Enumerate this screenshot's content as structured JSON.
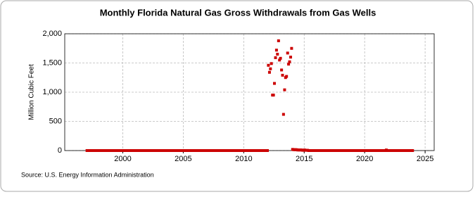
{
  "chart_data": {
    "type": "scatter",
    "title": "Monthly Florida Natural Gas Gross Withdrawals from Gas Wells",
    "y_label": "Million Cubic Feet",
    "source": "Source: U.S. Energy Information Administration",
    "color": "#cc0000",
    "grid": true,
    "xlim": [
      1995.2,
      2025.75
    ],
    "xticks": [
      2000,
      2005,
      2010,
      2015,
      2020,
      2025
    ],
    "ylim": [
      0,
      2000
    ],
    "yticks": [
      0,
      500,
      {
        "value": 1000,
        "label": "1,000"
      },
      {
        "value": 1500,
        "label": "1,500"
      },
      {
        "value": 2000,
        "label": "2,000"
      }
    ],
    "x": [
      1997.04,
      1997.13,
      1997.21,
      1997.29,
      1997.38,
      1997.46,
      1997.54,
      1997.63,
      1997.71,
      1997.79,
      1997.88,
      1997.96,
      1998.04,
      1998.13,
      1998.21,
      1998.29,
      1998.38,
      1998.46,
      1998.54,
      1998.63,
      1998.71,
      1998.79,
      1998.88,
      1998.96,
      1999.04,
      1999.13,
      1999.21,
      1999.29,
      1999.38,
      1999.46,
      1999.54,
      1999.63,
      1999.71,
      1999.79,
      1999.88,
      1999.96,
      2000.04,
      2000.13,
      2000.21,
      2000.29,
      2000.38,
      2000.46,
      2000.54,
      2000.63,
      2000.71,
      2000.79,
      2000.88,
      2000.96,
      2001.04,
      2001.13,
      2001.21,
      2001.29,
      2001.38,
      2001.46,
      2001.54,
      2001.63,
      2001.71,
      2001.79,
      2001.88,
      2001.96,
      2002.04,
      2002.13,
      2002.21,
      2002.29,
      2002.38,
      2002.46,
      2002.54,
      2002.63,
      2002.71,
      2002.79,
      2002.88,
      2002.96,
      2003.04,
      2003.13,
      2003.21,
      2003.29,
      2003.38,
      2003.46,
      2003.54,
      2003.63,
      2003.71,
      2003.79,
      2003.88,
      2003.96,
      2004.04,
      2004.13,
      2004.21,
      2004.29,
      2004.38,
      2004.46,
      2004.54,
      2004.63,
      2004.71,
      2004.79,
      2004.88,
      2004.96,
      2005.04,
      2005.13,
      2005.21,
      2005.29,
      2005.38,
      2005.46,
      2005.54,
      2005.63,
      2005.71,
      2005.79,
      2005.88,
      2005.96,
      2006.04,
      2006.13,
      2006.21,
      2006.29,
      2006.38,
      2006.46,
      2006.54,
      2006.63,
      2006.71,
      2006.79,
      2006.88,
      2006.96,
      2007.04,
      2007.13,
      2007.21,
      2007.29,
      2007.38,
      2007.46,
      2007.54,
      2007.63,
      2007.71,
      2007.79,
      2007.88,
      2007.96,
      2008.04,
      2008.13,
      2008.21,
      2008.29,
      2008.38,
      2008.46,
      2008.54,
      2008.63,
      2008.71,
      2008.79,
      2008.88,
      2008.96,
      2009.04,
      2009.13,
      2009.21,
      2009.29,
      2009.38,
      2009.46,
      2009.54,
      2009.63,
      2009.71,
      2009.79,
      2009.88,
      2009.96,
      2010.04,
      2010.13,
      2010.21,
      2010.29,
      2010.38,
      2010.46,
      2010.54,
      2010.63,
      2010.71,
      2010.79,
      2010.88,
      2010.96,
      2011.04,
      2011.13,
      2011.21,
      2011.29,
      2011.38,
      2011.46,
      2011.54,
      2011.63,
      2011.71,
      2011.79,
      2011.88,
      2011.96,
      2012.04,
      2012.13,
      2012.21,
      2012.29,
      2012.38,
      2012.46,
      2012.54,
      2012.63,
      2012.71,
      2012.79,
      2012.88,
      2012.96,
      2013.04,
      2013.13,
      2013.21,
      2013.29,
      2013.38,
      2013.46,
      2013.54,
      2013.63,
      2013.71,
      2013.79,
      2013.88,
      2013.96,
      2014.04,
      2014.13,
      2014.21,
      2014.29,
      2014.38,
      2014.46,
      2014.54,
      2014.63,
      2014.71,
      2014.79,
      2014.88,
      2014.96,
      2015.04,
      2015.13,
      2015.21,
      2015.29,
      2015.38,
      2015.46,
      2015.54,
      2015.63,
      2015.71,
      2015.79,
      2015.88,
      2015.96,
      2016.04,
      2016.13,
      2016.21,
      2016.29,
      2016.38,
      2016.46,
      2016.54,
      2016.63,
      2016.71,
      2016.79,
      2016.88,
      2016.96,
      2017.04,
      2017.13,
      2017.21,
      2017.29,
      2017.38,
      2017.46,
      2017.54,
      2017.63,
      2017.71,
      2017.79,
      2017.88,
      2017.96,
      2018.04,
      2018.13,
      2018.21,
      2018.29,
      2018.38,
      2018.46,
      2018.54,
      2018.63,
      2018.71,
      2018.79,
      2018.88,
      2018.96,
      2019.04,
      2019.13,
      2019.21,
      2019.29,
      2019.38,
      2019.46,
      2019.54,
      2019.63,
      2019.71,
      2019.79,
      2019.88,
      2019.96,
      2020.04,
      2020.13,
      2020.21,
      2020.29,
      2020.38,
      2020.46,
      2020.54,
      2020.63,
      2020.71,
      2020.79,
      2020.88,
      2020.96,
      2021.04,
      2021.13,
      2021.21,
      2021.29,
      2021.38,
      2021.46,
      2021.54,
      2021.63,
      2021.71,
      2021.79,
      2021.88,
      2021.96,
      2022.04,
      2022.13,
      2022.21,
      2022.29,
      2022.38,
      2022.46,
      2022.54,
      2022.63,
      2022.71,
      2022.79,
      2022.88,
      2022.96,
      2023.04,
      2023.13,
      2023.21,
      2023.29,
      2023.38,
      2023.46,
      2023.54,
      2023.63,
      2023.71,
      2023.79,
      2023.88,
      2023.96
    ],
    "values": [
      0,
      0,
      0,
      0,
      0,
      0,
      0,
      0,
      0,
      0,
      0,
      0,
      0,
      0,
      0,
      0,
      0,
      0,
      0,
      0,
      0,
      0,
      0,
      0,
      0,
      0,
      0,
      0,
      0,
      0,
      0,
      0,
      0,
      0,
      0,
      0,
      0,
      0,
      0,
      0,
      0,
      0,
      0,
      0,
      0,
      0,
      0,
      0,
      0,
      0,
      0,
      0,
      0,
      0,
      0,
      0,
      0,
      0,
      0,
      0,
      0,
      0,
      0,
      0,
      0,
      0,
      0,
      0,
      0,
      0,
      0,
      0,
      0,
      0,
      0,
      0,
      0,
      0,
      0,
      0,
      0,
      0,
      0,
      0,
      0,
      0,
      0,
      0,
      0,
      0,
      0,
      0,
      0,
      0,
      0,
      0,
      0,
      0,
      0,
      0,
      0,
      0,
      0,
      0,
      0,
      0,
      0,
      0,
      0,
      0,
      0,
      0,
      0,
      0,
      0,
      0,
      0,
      0,
      0,
      0,
      0,
      0,
      0,
      0,
      0,
      0,
      0,
      0,
      0,
      0,
      0,
      0,
      0,
      0,
      0,
      0,
      0,
      0,
      0,
      0,
      0,
      0,
      0,
      0,
      0,
      0,
      0,
      0,
      0,
      0,
      0,
      0,
      0,
      0,
      0,
      0,
      0,
      0,
      0,
      0,
      0,
      0,
      0,
      0,
      0,
      0,
      0,
      0,
      0,
      0,
      0,
      0,
      0,
      0,
      0,
      0,
      0,
      0,
      0,
      0,
      1460,
      1340,
      1400,
      1490,
      950,
      950,
      1150,
      1590,
      1720,
      1650,
      1880,
      1550,
      1580,
      1380,
      1290,
      620,
      1040,
      1250,
      1270,
      1670,
      1480,
      1520,
      1600,
      1750,
      20,
      15,
      15,
      15,
      15,
      10,
      10,
      10,
      10,
      10,
      5,
      5,
      10,
      5,
      5,
      5,
      0,
      0,
      0,
      0,
      0,
      0,
      0,
      0,
      0,
      0,
      0,
      0,
      0,
      0,
      0,
      0,
      0,
      0,
      0,
      0,
      0,
      0,
      0,
      0,
      0,
      0,
      0,
      0,
      0,
      0,
      0,
      0,
      0,
      0,
      0,
      0,
      0,
      0,
      0,
      0,
      0,
      0,
      0,
      0,
      0,
      0,
      0,
      0,
      0,
      0,
      0,
      0,
      0,
      0,
      0,
      0,
      0,
      0,
      0,
      0,
      0,
      0,
      0,
      0,
      0,
      0,
      0,
      0,
      0,
      0,
      0,
      0,
      0,
      0,
      0,
      0,
      0,
      10,
      0,
      0,
      0,
      0,
      0,
      0,
      0,
      0,
      0,
      0,
      0,
      0,
      0,
      0,
      0,
      0,
      0,
      0,
      0,
      0,
      0,
      0,
      0,
      0,
      0,
      0
    ]
  }
}
